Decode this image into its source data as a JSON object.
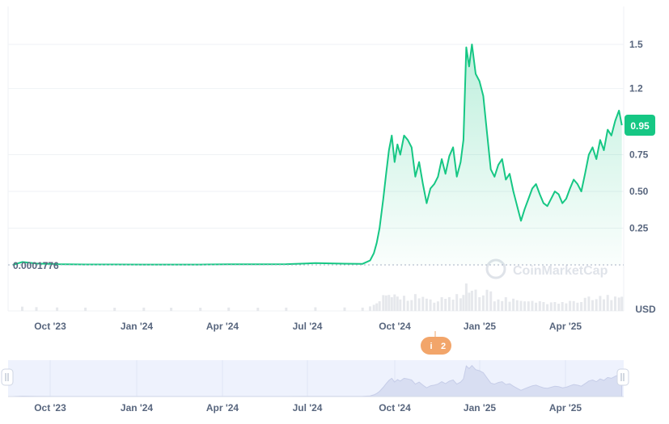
{
  "chart_data": {
    "type": "area",
    "currency": "USD",
    "current_price_label": "0.95",
    "start_price_label": "0.0001776",
    "watermark": "CoinMarketCap",
    "events_badge": {
      "icon": "i",
      "count": "2"
    },
    "colors": {
      "line": "#16c784",
      "badge": "#16c784",
      "event": "#f2a56a",
      "navigator_fill": "#eef2fd",
      "grid": "#eff2f5",
      "volume": "#e6e8ec"
    },
    "x_ticks": [
      "Oct '23",
      "Jan '24",
      "Apr '24",
      "Jul '24",
      "Oct '24",
      "Jan '25",
      "Apr '25"
    ],
    "y_ticks": [
      {
        "value": 1.5,
        "label": "1.5"
      },
      {
        "value": 1.2,
        "label": "1.2"
      },
      {
        "value": 0.75,
        "label": "0.75"
      },
      {
        "value": 0.5,
        "label": "0.50"
      },
      {
        "value": 0.25,
        "label": "0.25"
      }
    ],
    "ylim": [
      0,
      1.75
    ],
    "xlim": [
      "2023-09-10",
      "2025-06-24"
    ],
    "series": [
      {
        "x": [
          "2023-09-15",
          "2023-09-25",
          "2023-10-10",
          "2023-11-01",
          "2023-12-01",
          "2024-01-01",
          "2024-02-01",
          "2024-03-01",
          "2024-04-01",
          "2024-05-01",
          "2024-06-01",
          "2024-07-01",
          "2024-08-01",
          "2024-09-01",
          "2024-09-20",
          "2024-09-28",
          "2024-10-02",
          "2024-10-05",
          "2024-10-08",
          "2024-10-12",
          "2024-10-15",
          "2024-10-18",
          "2024-10-21",
          "2024-10-24",
          "2024-10-27",
          "2024-10-30",
          "2024-11-03",
          "2024-11-07",
          "2024-11-11",
          "2024-11-15",
          "2024-11-19",
          "2024-11-23",
          "2024-11-27",
          "2024-12-01",
          "2024-12-05",
          "2024-12-09",
          "2024-12-13",
          "2024-12-17",
          "2024-12-21",
          "2024-12-25",
          "2024-12-29",
          "2025-01-02",
          "2025-01-05",
          "2025-01-08",
          "2025-01-11",
          "2025-01-14",
          "2025-01-18",
          "2025-01-22",
          "2025-01-26",
          "2025-01-30",
          "2025-02-03",
          "2025-02-07",
          "2025-02-11",
          "2025-02-15",
          "2025-02-19",
          "2025-02-23",
          "2025-02-27",
          "2025-03-03",
          "2025-03-07",
          "2025-03-11",
          "2025-03-15",
          "2025-03-19",
          "2025-03-23",
          "2025-03-27",
          "2025-03-31",
          "2025-04-04",
          "2025-04-08",
          "2025-04-12",
          "2025-04-16",
          "2025-04-20",
          "2025-04-24",
          "2025-04-28",
          "2025-05-02",
          "2025-05-06",
          "2025-05-10",
          "2025-05-14",
          "2025-05-18",
          "2025-05-22",
          "2025-05-26",
          "2025-05-30",
          "2025-06-03",
          "2025-06-07",
          "2025-06-11",
          "2025-06-15",
          "2025-06-19",
          "2025-06-22"
        ],
        "y": [
          0.0001776,
          0.02,
          0.01,
          0.005,
          0.003,
          0.003,
          0.002,
          0.002,
          0.002,
          0.004,
          0.004,
          0.005,
          0.012,
          0.008,
          0.007,
          0.03,
          0.08,
          0.15,
          0.25,
          0.45,
          0.62,
          0.78,
          0.88,
          0.7,
          0.82,
          0.75,
          0.88,
          0.85,
          0.8,
          0.6,
          0.7,
          0.55,
          0.42,
          0.52,
          0.55,
          0.6,
          0.72,
          0.62,
          0.74,
          0.8,
          0.6,
          0.7,
          0.85,
          1.48,
          1.35,
          1.5,
          1.3,
          1.25,
          1.15,
          0.9,
          0.65,
          0.6,
          0.68,
          0.72,
          0.58,
          0.62,
          0.5,
          0.4,
          0.3,
          0.38,
          0.45,
          0.52,
          0.55,
          0.48,
          0.42,
          0.4,
          0.45,
          0.5,
          0.48,
          0.42,
          0.45,
          0.52,
          0.58,
          0.55,
          0.5,
          0.62,
          0.75,
          0.8,
          0.72,
          0.85,
          0.78,
          0.92,
          0.88,
          0.98,
          1.05,
          0.95
        ]
      }
    ]
  }
}
